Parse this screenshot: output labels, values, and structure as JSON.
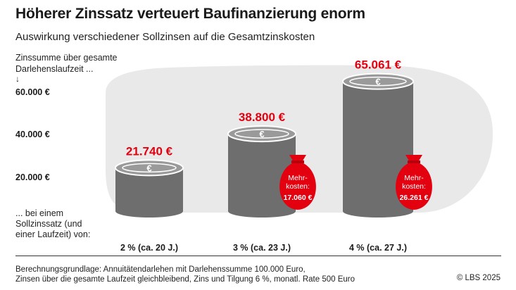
{
  "title": "Höherer Zinssatz verteuert Baufinanzierung enorm",
  "subtitle": "Auswirkung verschiedener Sollzinsen auf die Gesamtzinskosten",
  "y_axis_label": "Zinssumme über gesamte Darlehenslaufzeit ...",
  "y_arrow": "↓",
  "x_intro": "... bei einem Sollzinssatz (und einer Laufzeit) von:",
  "footnote_line1": "Berechnungsgrundlage: Annuitätendarlehen mit Darlehenssumme 100.000 Euro,",
  "footnote_line2": "Zinsen über die gesamte Laufzeit gleichbleibend, Zins und Tilgung 6 %, monatl. Rate 500 Euro",
  "credit": "© LBS 2025",
  "colors": {
    "accent": "#e3000f",
    "coin": "#6e6e6e",
    "coin_light": "#9a9a9a",
    "blob": "#e9e9e9"
  },
  "chart_data": {
    "type": "bar",
    "categories": [
      "2 % (ca. 20 J.)",
      "3 % (ca. 23 J.)",
      "4 % (ca. 27 J.)"
    ],
    "values": [
      21740,
      38800,
      65061
    ],
    "value_labels": [
      "21.740 €",
      "38.800 €",
      "65.061 €"
    ],
    "y_ticks": [
      {
        "value": 20000,
        "label": "20.000 €"
      },
      {
        "value": 40000,
        "label": "40.000 €"
      },
      {
        "value": 60000,
        "label": "60.000 €"
      }
    ],
    "extra_costs": [
      null,
      {
        "label_line1": "Mehr-",
        "label_line2": "kosten:",
        "value": "17.060 €"
      },
      {
        "label_line1": "Mehr-",
        "label_line2": "kosten:",
        "value": "26.261 €"
      }
    ],
    "coin_counts": [
      5,
      8,
      14
    ]
  }
}
